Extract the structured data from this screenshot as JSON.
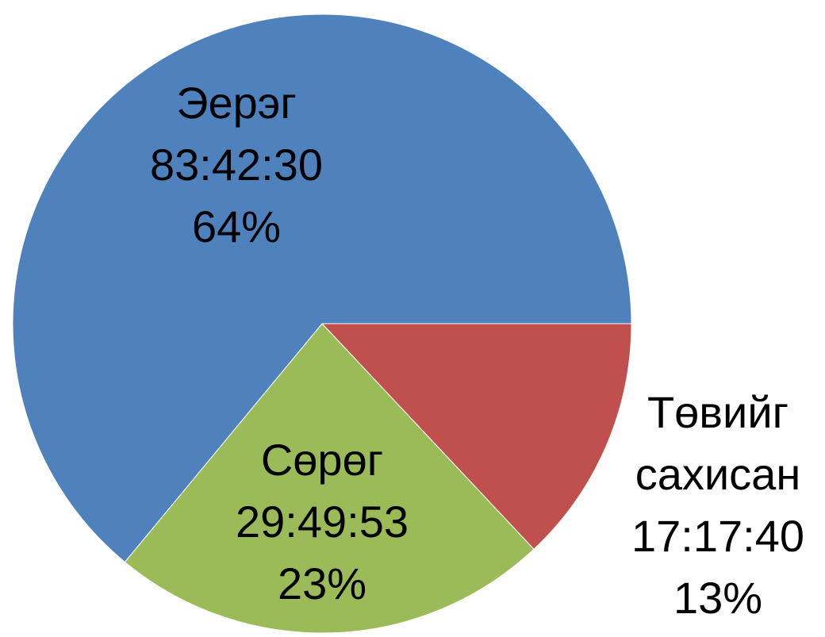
{
  "chart_data": {
    "type": "pie",
    "categories": [
      "Эерэг",
      "Сөрөг",
      "Төвийг сахисан"
    ],
    "durations": [
      "83:42:30",
      "29:49:53",
      "17:17:40"
    ],
    "values": [
      64,
      23,
      13
    ],
    "value_labels": [
      "64%",
      "23%",
      "13%"
    ],
    "colors": [
      "#4f81bd",
      "#9bbb59",
      "#c0504d"
    ]
  }
}
